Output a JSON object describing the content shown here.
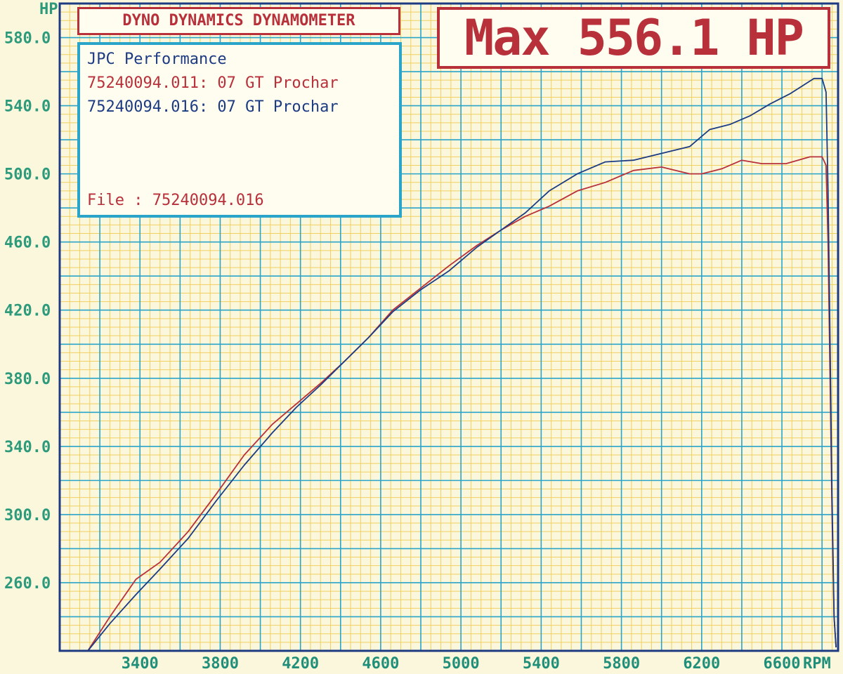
{
  "header": {
    "title": "DYNO DYNAMICS DYNAMOMETER",
    "max_label": "Max 556.1 HP"
  },
  "legend": {
    "shop": "JPC Performance",
    "run1": "75240094.011: 07 GT Prochar",
    "run2": "75240094.016: 07 GT Prochar",
    "file_label": "File",
    "file_value": ": 75240094.016"
  },
  "colors": {
    "red_series": "#b8303a",
    "blue_series": "#1c3b82",
    "grid_major": "#2aa4c8",
    "grid_minor": "#f0d060",
    "background": "#fbf7dc"
  },
  "chart_data": {
    "type": "line",
    "ylabel": "HP",
    "xlabel": "RPM",
    "xlim": [
      3000,
      6880
    ],
    "ylim": [
      220,
      600
    ],
    "xticks": [
      3400,
      3800,
      4200,
      4600,
      5000,
      5400,
      5800,
      6200,
      6600
    ],
    "yticks": [
      260.0,
      300.0,
      340.0,
      380.0,
      420.0,
      460.0,
      500.0,
      540.0,
      580.0
    ],
    "ytick_labels": [
      "260.0",
      "300.0",
      "340.0",
      "380.0",
      "420.0",
      "460.0",
      "500.0",
      "540.0",
      "580.0"
    ],
    "xtick_labels": [
      "3400",
      "3800",
      "4200",
      "4600",
      "5000",
      "5400",
      "5800",
      "6200",
      "6600"
    ],
    "grid": true,
    "series": [
      {
        "color_key": "red_series",
        "x": [
          3140,
          3250,
          3380,
          3500,
          3640,
          3780,
          3920,
          4060,
          4180,
          4300,
          4420,
          4540,
          4660,
          4800,
          4940,
          5080,
          5200,
          5320,
          5440,
          5580,
          5720,
          5860,
          6000,
          6140,
          6200,
          6300,
          6400,
          6500,
          6620,
          6740,
          6800,
          6820,
          6830,
          6840,
          6850,
          6860,
          6870
        ],
        "y": [
          220,
          240,
          262,
          272,
          290,
          312,
          335,
          353,
          365,
          377,
          390,
          404,
          420,
          433,
          446,
          458,
          467,
          475,
          481,
          490,
          495,
          502,
          504,
          500,
          500,
          503,
          508,
          506,
          506,
          510,
          510,
          505,
          460,
          380,
          300,
          240,
          222
        ]
      },
      {
        "color_key": "blue_series",
        "x": [
          3140,
          3250,
          3380,
          3500,
          3640,
          3780,
          3920,
          4060,
          4180,
          4300,
          4420,
          4540,
          4660,
          4800,
          4940,
          5080,
          5200,
          5320,
          5440,
          5580,
          5720,
          5860,
          6000,
          6140,
          6240,
          6340,
          6440,
          6540,
          6640,
          6760,
          6800,
          6820,
          6830,
          6840,
          6850,
          6860,
          6870
        ],
        "y": [
          220,
          236,
          253,
          268,
          286,
          308,
          329,
          348,
          363,
          376,
          390,
          404,
          419,
          432,
          443,
          457,
          467,
          477,
          490,
          500,
          507,
          508,
          512,
          516,
          526,
          529,
          534,
          541,
          547,
          556,
          556,
          548,
          490,
          400,
          310,
          240,
          222
        ]
      }
    ]
  }
}
